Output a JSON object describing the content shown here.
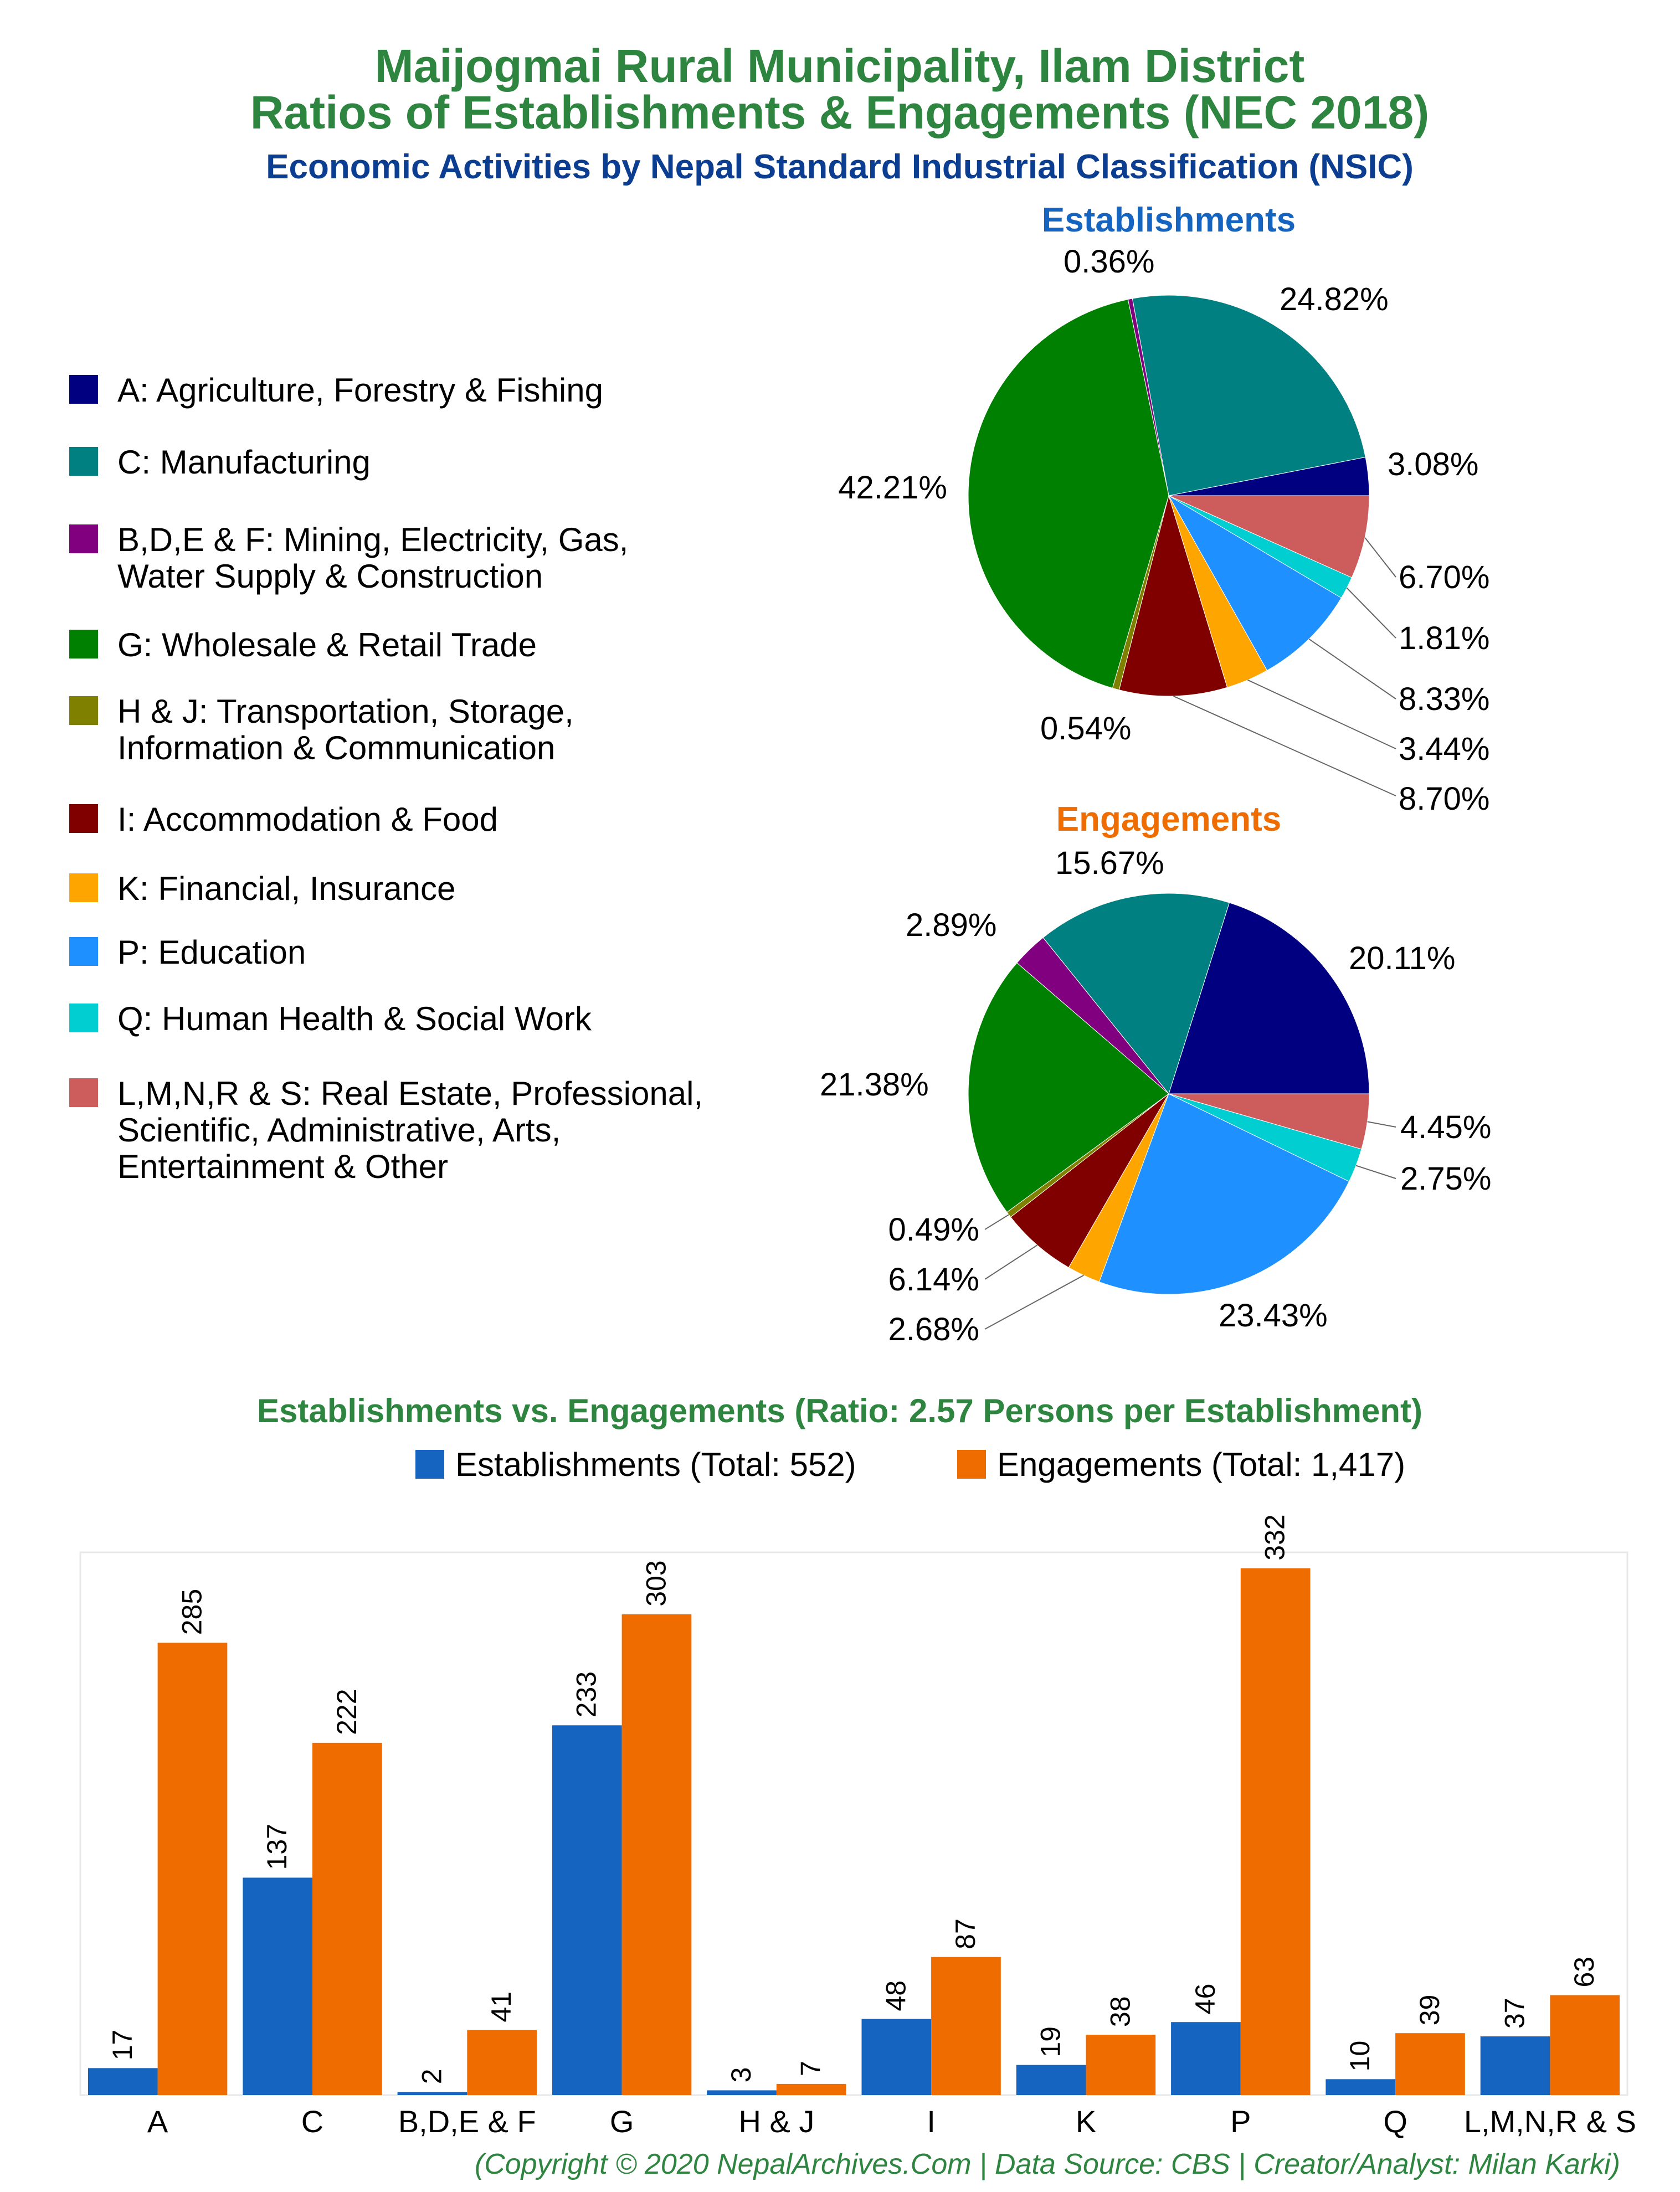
{
  "title_line1": "Maijogmai Rural Municipality, Ilam District",
  "title_line2": "Ratios of Establishments & Engagements (NEC 2018)",
  "subtitle": "Economic Activities by Nepal Standard Industrial Classification (NSIC)",
  "pie1_title": "Establishments",
  "pie2_title": "Engagements",
  "bar_title": "Establishments vs. Engagements (Ratio: 2.57 Persons per Establishment)",
  "copyright": "(Copyright © 2020 NepalArchives.Com | Data Source: CBS | Creator/Analyst: Milan Karki)",
  "colors": {
    "title": "#2e8540",
    "subtitle": "#0b3d91",
    "establishments": "#1565c0",
    "engagements": "#ef6c00"
  },
  "legend": [
    {
      "lines": [
        "A: Agriculture, Forestry & Fishing"
      ],
      "color": "#000080"
    },
    {
      "lines": [
        "C: Manufacturing"
      ],
      "color": "#008080"
    },
    {
      "lines": [
        "B,D,E & F: Mining, Electricity, Gas,",
        "Water Supply & Construction"
      ],
      "color": "#800080"
    },
    {
      "lines": [
        "G: Wholesale & Retail Trade"
      ],
      "color": "#008000"
    },
    {
      "lines": [
        "H & J: Transportation, Storage,",
        "Information & Communication"
      ],
      "color": "#808000"
    },
    {
      "lines": [
        "I: Accommodation & Food"
      ],
      "color": "#800000"
    },
    {
      "lines": [
        "K: Financial, Insurance"
      ],
      "color": "#ffa500"
    },
    {
      "lines": [
        "P: Education"
      ],
      "color": "#1e90ff"
    },
    {
      "lines": [
        "Q: Human Health & Social Work"
      ],
      "color": "#00ced1"
    },
    {
      "lines": [
        "L,M,N,R & S: Real Estate, Professional,",
        "Scientific, Administrative, Arts,",
        "Entertainment & Other"
      ],
      "color": "#cd5c5c"
    }
  ],
  "chart_data": [
    {
      "type": "pie",
      "title": "Establishments",
      "labels": [
        "A",
        "C",
        "B,D,E & F",
        "G",
        "H & J",
        "I",
        "K",
        "P",
        "Q",
        "L,M,N,R & S"
      ],
      "values": [
        3.08,
        24.82,
        0.36,
        42.21,
        0.54,
        8.7,
        3.44,
        8.33,
        1.81,
        6.7
      ],
      "value_labels": [
        "3.08%",
        "24.82%",
        "0.36%",
        "42.21%",
        "0.54%",
        "8.70%",
        "3.44%",
        "8.33%",
        "1.81%",
        "6.70%"
      ],
      "colors": [
        "#000080",
        "#008080",
        "#800080",
        "#008000",
        "#808000",
        "#800000",
        "#ffa500",
        "#1e90ff",
        "#00ced1",
        "#cd5c5c"
      ]
    },
    {
      "type": "pie",
      "title": "Engagements",
      "labels": [
        "A",
        "C",
        "B,D,E & F",
        "G",
        "H & J",
        "I",
        "K",
        "P",
        "Q",
        "L,M,N,R & S"
      ],
      "values": [
        20.11,
        15.67,
        2.89,
        21.38,
        0.49,
        6.14,
        2.68,
        23.43,
        2.75,
        4.45
      ],
      "value_labels": [
        "20.11%",
        "15.67%",
        "2.89%",
        "21.38%",
        "0.49%",
        "6.14%",
        "2.68%",
        "23.43%",
        "2.75%",
        "4.45%"
      ],
      "colors": [
        "#000080",
        "#008080",
        "#800080",
        "#008000",
        "#808000",
        "#800000",
        "#ffa500",
        "#1e90ff",
        "#00ced1",
        "#cd5c5c"
      ]
    },
    {
      "type": "bar",
      "title": "Establishments vs. Engagements (Ratio: 2.57 Persons per Establishment)",
      "categories": [
        "A",
        "C",
        "B,D,E & F",
        "G",
        "H & J",
        "I",
        "K",
        "P",
        "Q",
        "L,M,N,R & S"
      ],
      "series": [
        {
          "name": "Establishments (Total: 552)",
          "color": "#1565c0",
          "values": [
            17,
            137,
            2,
            233,
            3,
            48,
            19,
            46,
            10,
            37
          ]
        },
        {
          "name": "Engagements (Total: 1,417)",
          "color": "#ef6c00",
          "values": [
            285,
            222,
            41,
            303,
            7,
            87,
            38,
            332,
            39,
            63
          ]
        }
      ],
      "ylim": [
        0,
        342
      ],
      "grid": false,
      "legend": "top"
    }
  ]
}
